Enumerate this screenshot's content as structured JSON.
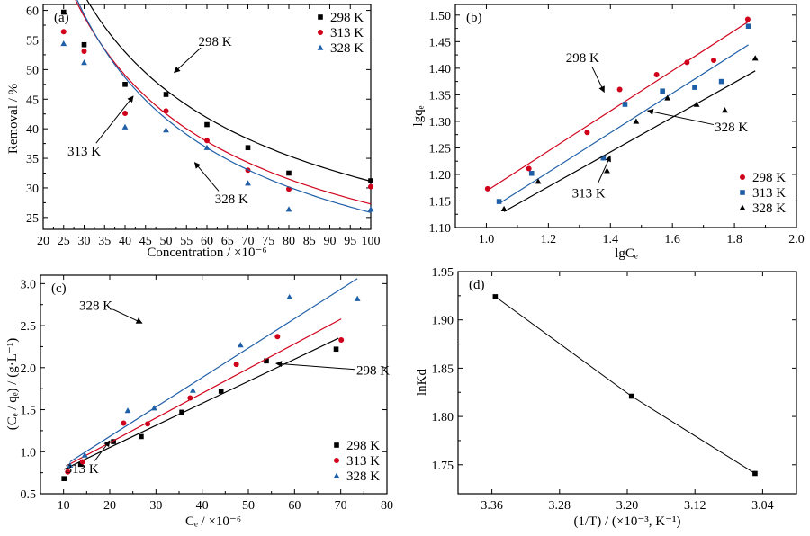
{
  "chart_data": [
    {
      "panel": "(a)",
      "type": "scatter",
      "xlabel": "Concentration / ×10⁻⁶",
      "ylabel": "Removal / %",
      "xlim": [
        20,
        100
      ],
      "ylim": [
        23,
        61
      ],
      "xticks": [
        "20",
        "25",
        "30",
        "35",
        "40",
        "45",
        "50",
        "55",
        "60",
        "65",
        "70",
        "75",
        "80",
        "85",
        "90",
        "95",
        "100"
      ],
      "yticks": [
        "25",
        "30",
        "35",
        "40",
        "45",
        "50",
        "55",
        "60"
      ],
      "legend": "top-right",
      "series": [
        {
          "name": "298 K",
          "color": "#000000",
          "marker": "square",
          "x": [
            25,
            30,
            40,
            50,
            60,
            70,
            80,
            100
          ],
          "y": [
            59.7,
            54.2,
            47.5,
            45.8,
            40.7,
            36.8,
            32.5,
            31.2
          ],
          "fit": {
            "type": "power",
            "a": 450,
            "b": -0.58
          }
        },
        {
          "name": "313 K",
          "color": "#d0021b",
          "marker": "circle",
          "x": [
            25,
            30,
            40,
            50,
            60,
            70,
            80,
            100
          ],
          "y": [
            56.4,
            53.1,
            42.6,
            43.0,
            38.0,
            33.0,
            29.8,
            30.2
          ],
          "fit": {
            "type": "power",
            "a": 520,
            "b": -0.64
          }
        },
        {
          "name": "328 K",
          "color": "#1f5fa8",
          "marker": "triangle",
          "x": [
            25,
            30,
            40,
            50,
            60,
            70,
            80,
            100
          ],
          "y": [
            54.4,
            51.2,
            40.3,
            39.8,
            36.8,
            30.8,
            26.4,
            26.4
          ],
          "fit": {
            "type": "power",
            "a": 620,
            "b": -0.69
          }
        }
      ],
      "annotations": [
        {
          "text": "298 K",
          "tx": 62,
          "ty": 54.8,
          "ax": 52,
          "ay": 49.5
        },
        {
          "text": "313 K",
          "tx": 30,
          "ty": 36.2,
          "ax": 42,
          "ay": 45.5
        },
        {
          "text": "328 K",
          "tx": 66,
          "ty": 28.2,
          "ax": 57,
          "ay": 34.3
        }
      ]
    },
    {
      "panel": "(b)",
      "type": "scatter",
      "xlabel": "lgCₑ",
      "ylabel": "lgqₑ",
      "xlim": [
        0.9,
        2.0
      ],
      "ylim": [
        1.1,
        1.52
      ],
      "xticks": [
        "1.0",
        "1.2",
        "1.4",
        "1.6",
        "1.8",
        "2.0"
      ],
      "yticks": [
        "1.10",
        "1.15",
        "1.20",
        "1.25",
        "1.30",
        "1.35",
        "1.40",
        "1.45",
        "1.50"
      ],
      "legend": "bottom-right",
      "series": [
        {
          "name": "298 K",
          "color": "#d0021b",
          "marker": "circle",
          "x": [
            1.004,
            1.137,
            1.325,
            1.43,
            1.549,
            1.647,
            1.733,
            1.843
          ],
          "y": [
            1.173,
            1.211,
            1.279,
            1.36,
            1.388,
            1.411,
            1.415,
            1.492
          ],
          "fit": {
            "x": [
              1.004,
              1.843
            ],
            "y": [
              1.17,
              1.487
            ]
          }
        },
        {
          "name": "313 K",
          "color": "#1f5fa8",
          "marker": "square",
          "x": [
            1.041,
            1.146,
            1.377,
            1.447,
            1.568,
            1.672,
            1.758,
            1.845
          ],
          "y": [
            1.149,
            1.202,
            1.231,
            1.332,
            1.357,
            1.364,
            1.375,
            1.479
          ],
          "fit": {
            "x": [
              1.041,
              1.845
            ],
            "y": [
              1.145,
              1.444
            ]
          }
        },
        {
          "name": "328 K",
          "color": "#000000",
          "marker": "triangle",
          "x": [
            1.057,
            1.167,
            1.389,
            1.483,
            1.584,
            1.678,
            1.769,
            1.867
          ],
          "y": [
            1.135,
            1.187,
            1.207,
            1.3,
            1.344,
            1.332,
            1.321,
            1.419
          ],
          "fit": {
            "x": [
              1.057,
              1.867
            ],
            "y": [
              1.13,
              1.395
            ]
          }
        }
      ],
      "annotations": [
        {
          "text": "298 K",
          "tx": 1.31,
          "ty": 1.42,
          "ax": 1.38,
          "ay": 1.355
        },
        {
          "text": "328 K",
          "tx": 1.79,
          "ty": 1.29,
          "ax": 1.52,
          "ay": 1.32
        },
        {
          "text": "313 K",
          "tx": 1.33,
          "ty": 1.165,
          "ax": 1.4,
          "ay": 1.235
        }
      ]
    },
    {
      "panel": "(c)",
      "type": "scatter",
      "xlabel": "Cₑ / ×10⁻⁶",
      "ylabel": "(Cₑ / qₑ) / (g·L⁻¹)",
      "xlim": [
        5,
        80
      ],
      "ylim": [
        0.5,
        3.1
      ],
      "xticks": [
        "10",
        "20",
        "30",
        "40",
        "50",
        "60",
        "70",
        "80"
      ],
      "yticks": [
        "0.5",
        "1.0",
        "1.5",
        "2.0",
        "2.5",
        "3.0"
      ],
      "legend": "bottom-right",
      "series": [
        {
          "name": "298 K",
          "color": "#000000",
          "marker": "square",
          "x": [
            10.1,
            13.7,
            20.8,
            26.8,
            35.6,
            44.1,
            53.9,
            69
          ],
          "y": [
            0.68,
            0.85,
            1.12,
            1.18,
            1.47,
            1.72,
            2.08,
            2.22
          ],
          "fit": {
            "x": [
              10.1,
              69.5
            ],
            "y": [
              0.79,
              2.35
            ]
          }
        },
        {
          "name": "313 K",
          "color": "#d0021b",
          "marker": "circle",
          "x": [
            10.9,
            14.1,
            23,
            28.2,
            37.4,
            47.4,
            56.3,
            70.1
          ],
          "y": [
            0.76,
            0.88,
            1.34,
            1.33,
            1.64,
            2.04,
            2.37,
            2.33
          ],
          "fit": {
            "x": [
              10.9,
              70.1
            ],
            "y": [
              0.84,
              2.58
            ]
          }
        },
        {
          "name": "328 K",
          "color": "#1f5fa8",
          "marker": "triangle",
          "x": [
            11.4,
            14.6,
            23.9,
            29.6,
            38,
            48.3,
            58.9,
            73.6
          ],
          "y": [
            0.84,
            0.96,
            1.49,
            1.52,
            1.73,
            2.27,
            2.84,
            2.82
          ],
          "fit": {
            "x": [
              11.4,
              73.6
            ],
            "y": [
              0.88,
              3.06
            ]
          }
        }
      ],
      "annotations": [
        {
          "text": "328 K",
          "tx": 17,
          "ty": 2.74,
          "ax": 27,
          "ay": 2.53
        },
        {
          "text": "298 K",
          "tx": 77,
          "ty": 1.97,
          "ax": 56,
          "ay": 2.05
        },
        {
          "text": "313 K",
          "tx": 14,
          "ty": 0.8,
          "ax": 20,
          "ay": 1.13
        }
      ]
    },
    {
      "panel": "(d)",
      "type": "line",
      "xlabel": "(1/T) / (×10⁻³, K⁻¹)",
      "ylabel": "lnKd",
      "xlim": [
        3.4,
        3.0
      ],
      "ylim": [
        1.72,
        1.95
      ],
      "xticks": [
        "3.36",
        "3.28",
        "3.20",
        "3.12",
        "3.04"
      ],
      "yticks": [
        "1.75",
        "1.80",
        "1.85",
        "1.90",
        "1.95"
      ],
      "series": [
        {
          "name": "",
          "color": "#000000",
          "marker": "square",
          "x": [
            3.356,
            3.195,
            3.049
          ],
          "y": [
            1.924,
            1.821,
            1.741
          ]
        }
      ]
    }
  ]
}
